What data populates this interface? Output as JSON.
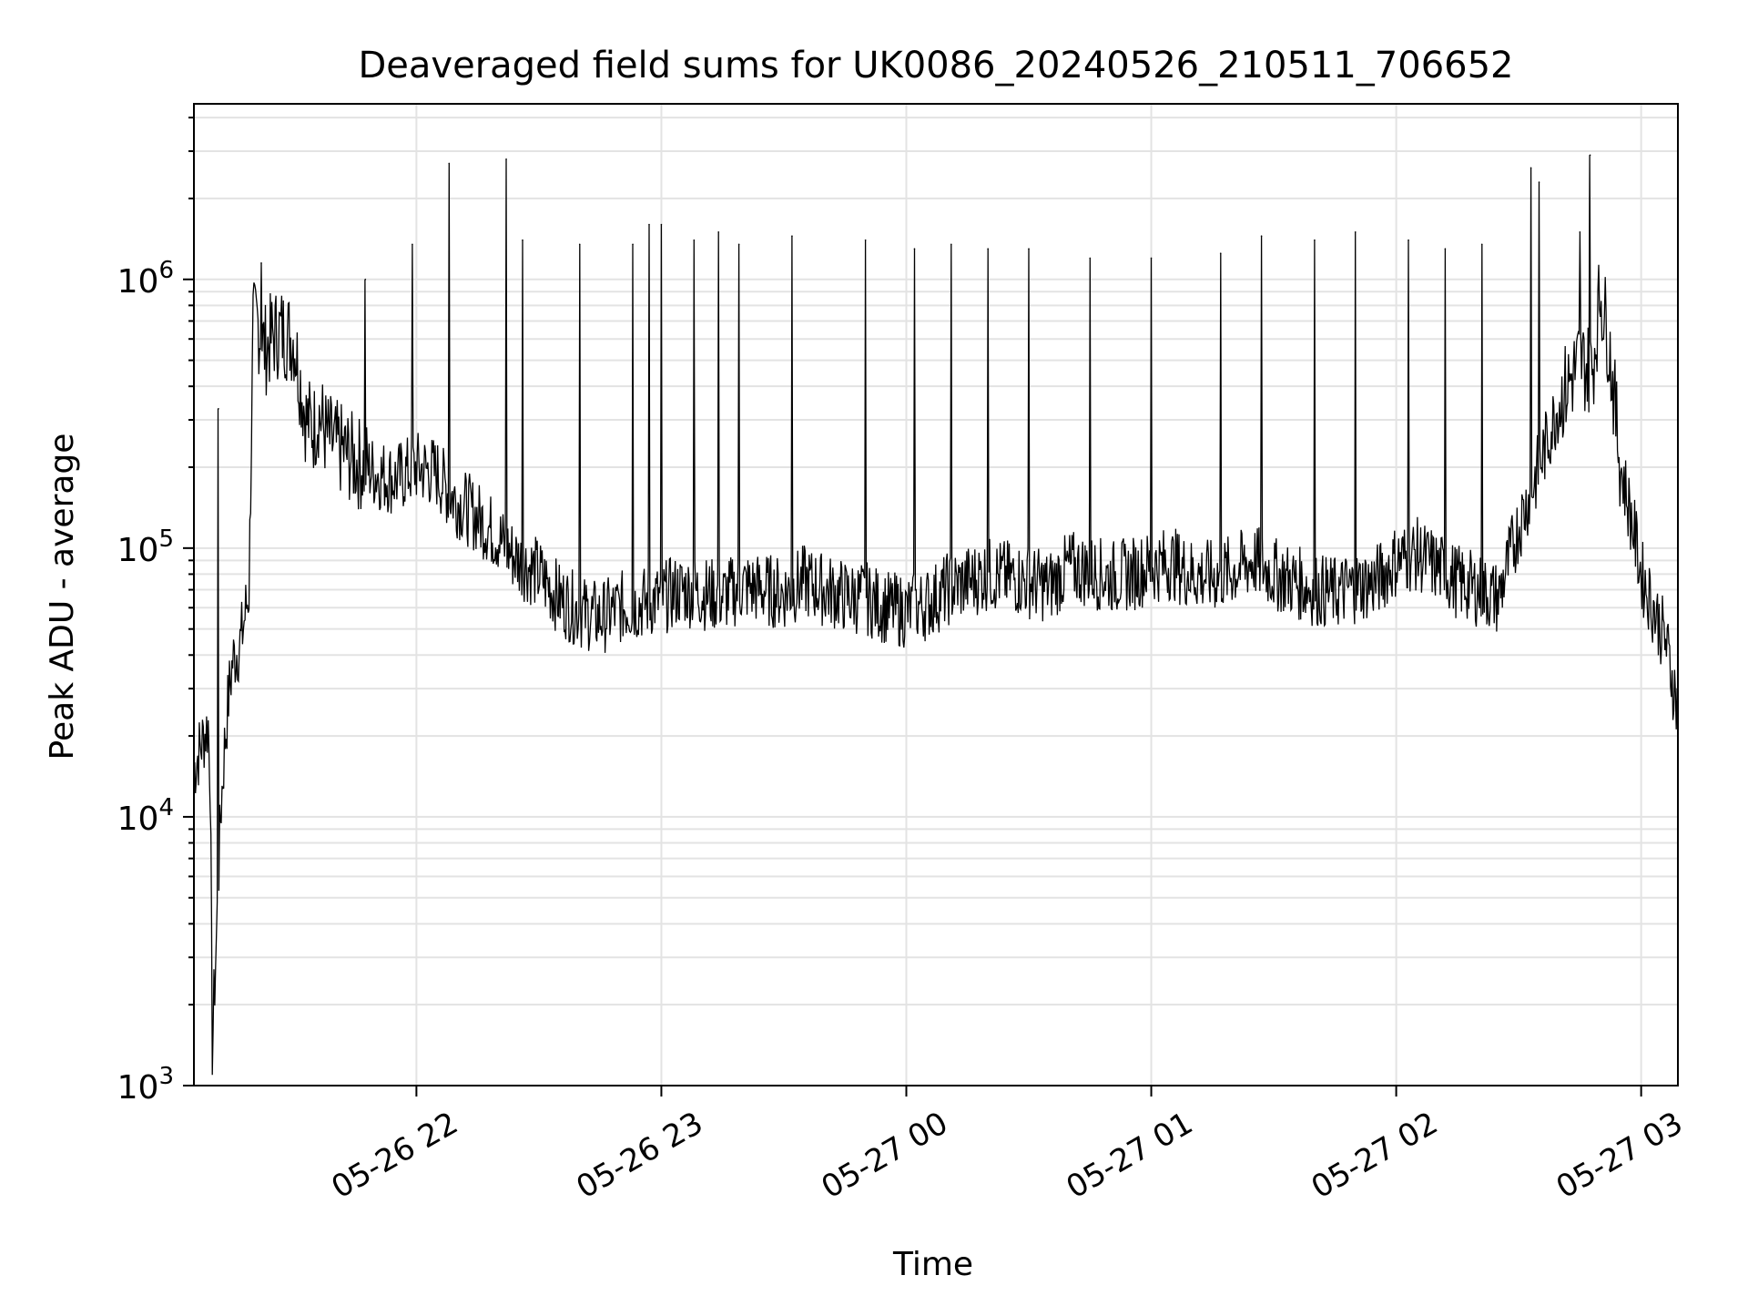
{
  "chart_data": {
    "type": "line",
    "title": "Deaveraged field sums for UK0086_20240526_210511_706652",
    "xlabel": "Time",
    "ylabel": "Peak ADU - average",
    "yscale": "log",
    "ylim": [
      1000,
      4500000
    ],
    "xlim": [
      "2024-05-26T21:05:30",
      "2024-05-27T03:09:00"
    ],
    "grid": true,
    "x_ticks": [
      {
        "t": "2024-05-26T22:00",
        "label": "05-26 22"
      },
      {
        "t": "2024-05-26T23:00",
        "label": "05-26 23"
      },
      {
        "t": "2024-05-27T00:00",
        "label": "05-27 00"
      },
      {
        "t": "2024-05-27T01:00",
        "label": "05-27 01"
      },
      {
        "t": "2024-05-27T02:00",
        "label": "05-27 02"
      },
      {
        "t": "2024-05-27T03:00",
        "label": "05-27 03"
      }
    ],
    "y_ticks": [
      {
        "value": 1000,
        "base": "10",
        "exp": "3"
      },
      {
        "value": 10000,
        "base": "10",
        "exp": "4"
      },
      {
        "value": 100000,
        "base": "10",
        "exp": "5"
      },
      {
        "value": 1000000,
        "base": "10",
        "exp": "6"
      }
    ],
    "line_color": "#000000",
    "series": [
      {
        "x": [
          "2024-05-26T21:05:30",
          "2024-05-26T21:07:00",
          "2024-05-26T21:08:00",
          "2024-05-26T21:09:00",
          "2024-05-26T21:09:30",
          "2024-05-26T21:10:00",
          "2024-05-26T21:11:00",
          "2024-05-26T21:12:00",
          "2024-05-26T21:13:00",
          "2024-05-26T21:14:00",
          "2024-05-26T21:15:00",
          "2024-05-26T21:17:00",
          "2024-05-26T21:19:00",
          "2024-05-26T21:20:00",
          "2024-05-26T21:21:00",
          "2024-05-26T21:22:00",
          "2024-05-26T21:23:00",
          "2024-05-26T21:25:00",
          "2024-05-26T21:27:00",
          "2024-05-26T21:30:00",
          "2024-05-26T21:33:00",
          "2024-05-26T21:35:00",
          "2024-05-26T21:36:00",
          "2024-05-26T21:37:00",
          "2024-05-26T21:38:00",
          "2024-05-26T21:40:00",
          "2024-05-26T21:42:00",
          "2024-05-26T21:45:00",
          "2024-05-26T21:48:00",
          "2024-05-26T21:50:00",
          "2024-05-26T21:55:00",
          "2024-05-26T22:00:00",
          "2024-05-26T22:05:00",
          "2024-05-26T22:08:00",
          "2024-05-26T22:10:00",
          "2024-05-26T22:15:00",
          "2024-05-26T22:20:00",
          "2024-05-26T22:22:00",
          "2024-05-26T22:25:00",
          "2024-05-26T22:30:00",
          "2024-05-26T22:35:00",
          "2024-05-26T22:40:00",
          "2024-05-26T22:45:00",
          "2024-05-26T22:50:00",
          "2024-05-26T22:55:00",
          "2024-05-26T23:00:00",
          "2024-05-26T23:05:00",
          "2024-05-26T23:10:00",
          "2024-05-26T23:15:00",
          "2024-05-26T23:20:00",
          "2024-05-26T23:25:00",
          "2024-05-26T23:30:00",
          "2024-05-26T23:35:00",
          "2024-05-26T23:40:00",
          "2024-05-26T23:45:00",
          "2024-05-26T23:50:00",
          "2024-05-26T23:55:00",
          "2024-05-27T00:00:00",
          "2024-05-27T00:05:00",
          "2024-05-27T00:10:00",
          "2024-05-27T00:15:00",
          "2024-05-27T00:20:00",
          "2024-05-27T00:25:00",
          "2024-05-27T00:30:00",
          "2024-05-27T00:35:00",
          "2024-05-27T00:40:00",
          "2024-05-27T00:45:00",
          "2024-05-27T00:50:00",
          "2024-05-27T00:55:00",
          "2024-05-27T01:00:00",
          "2024-05-27T01:05:00",
          "2024-05-27T01:10:00",
          "2024-05-27T01:15:00",
          "2024-05-27T01:20:00",
          "2024-05-27T01:25:00",
          "2024-05-27T01:30:00",
          "2024-05-27T01:35:00",
          "2024-05-27T01:40:00",
          "2024-05-27T01:45:00",
          "2024-05-27T01:50:00",
          "2024-05-27T01:55:00",
          "2024-05-27T02:00:00",
          "2024-05-27T02:05:00",
          "2024-05-27T02:10:00",
          "2024-05-27T02:15:00",
          "2024-05-27T02:20:00",
          "2024-05-27T02:25:00",
          "2024-05-27T02:30:00",
          "2024-05-27T02:35:00",
          "2024-05-27T02:40:00",
          "2024-05-27T02:45:00",
          "2024-05-27T02:48:00",
          "2024-05-27T02:50:00",
          "2024-05-27T02:52:00",
          "2024-05-27T02:55:00",
          "2024-05-27T02:58:00",
          "2024-05-27T03:00:00",
          "2024-05-27T03:03:00",
          "2024-05-27T03:06:00",
          "2024-05-27T03:09:00"
        ],
        "y": [
          15000,
          18000,
          20000,
          22000,
          14000,
          1400,
          3500,
          10000,
          18000,
          28000,
          38000,
          45000,
          70000,
          650000,
          700000,
          600000,
          550000,
          620000,
          640000,
          600000,
          300000,
          280000,
          320000,
          290000,
          260000,
          240000,
          230000,
          210000,
          200000,
          190000,
          180000,
          200000,
          190000,
          160000,
          150000,
          130000,
          110000,
          100000,
          90000,
          80000,
          65000,
          58000,
          55000,
          60000,
          62000,
          65000,
          70000,
          68000,
          66000,
          72000,
          70000,
          68000,
          75000,
          70000,
          66000,
          65000,
          60000,
          58000,
          62000,
          70000,
          75000,
          80000,
          78000,
          75000,
          72000,
          85000,
          82000,
          78000,
          80000,
          85000,
          88000,
          80000,
          78000,
          82000,
          90000,
          80000,
          75000,
          70000,
          68000,
          72000,
          75000,
          90000,
          95000,
          85000,
          75000,
          70000,
          65000,
          120000,
          200000,
          350000,
          500000,
          450000,
          900000,
          600000,
          200000,
          120000,
          80000,
          60000,
          45000,
          25000
        ],
        "spikes": [
          {
            "t": "2024-05-26T21:11:30",
            "y": 330000
          },
          {
            "t": "2024-05-26T21:22:00",
            "y": 1150000
          },
          {
            "t": "2024-05-26T21:47:30",
            "y": 1000000
          },
          {
            "t": "2024-05-26T21:59:00",
            "y": 1350000
          },
          {
            "t": "2024-05-26T22:08:00",
            "y": 2700000
          },
          {
            "t": "2024-05-26T22:22:00",
            "y": 2800000
          },
          {
            "t": "2024-05-26T22:26:00",
            "y": 1400000
          },
          {
            "t": "2024-05-26T22:40:00",
            "y": 1350000
          },
          {
            "t": "2024-05-26T22:53:00",
            "y": 1350000
          },
          {
            "t": "2024-05-26T22:57:00",
            "y": 1600000
          },
          {
            "t": "2024-05-26T23:00:00",
            "y": 1600000
          },
          {
            "t": "2024-05-26T23:08:00",
            "y": 1400000
          },
          {
            "t": "2024-05-26T23:14:00",
            "y": 1500000
          },
          {
            "t": "2024-05-26T23:19:00",
            "y": 1350000
          },
          {
            "t": "2024-05-26T23:32:00",
            "y": 1450000
          },
          {
            "t": "2024-05-26T23:50:00",
            "y": 1400000
          },
          {
            "t": "2024-05-27T00:02:00",
            "y": 1300000
          },
          {
            "t": "2024-05-27T00:11:00",
            "y": 1350000
          },
          {
            "t": "2024-05-27T00:20:00",
            "y": 1300000
          },
          {
            "t": "2024-05-27T00:30:00",
            "y": 1300000
          },
          {
            "t": "2024-05-27T00:45:00",
            "y": 1200000
          },
          {
            "t": "2024-05-27T01:00:00",
            "y": 1200000
          },
          {
            "t": "2024-05-27T01:17:00",
            "y": 1250000
          },
          {
            "t": "2024-05-27T01:27:00",
            "y": 1450000
          },
          {
            "t": "2024-05-27T01:40:00",
            "y": 1400000
          },
          {
            "t": "2024-05-27T01:50:00",
            "y": 1500000
          },
          {
            "t": "2024-05-27T02:03:00",
            "y": 1400000
          },
          {
            "t": "2024-05-27T02:12:00",
            "y": 1300000
          },
          {
            "t": "2024-05-27T02:21:00",
            "y": 1350000
          },
          {
            "t": "2024-05-27T02:33:00",
            "y": 2600000
          },
          {
            "t": "2024-05-27T02:35:00",
            "y": 2300000
          },
          {
            "t": "2024-05-27T02:45:00",
            "y": 1500000
          },
          {
            "t": "2024-05-27T02:47:30",
            "y": 2900000
          }
        ]
      }
    ]
  }
}
